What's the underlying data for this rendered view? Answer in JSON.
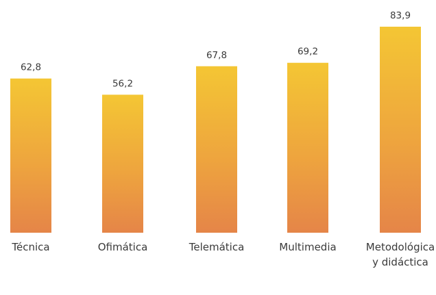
{
  "chart_data": {
    "type": "bar",
    "categories": [
      [
        "Técnica"
      ],
      [
        "Ofimática"
      ],
      [
        "Telemática"
      ],
      [
        "Multimedia"
      ],
      [
        "Metodológica",
        "y didáctica"
      ]
    ],
    "values": [
      62.8,
      56.2,
      67.8,
      69.2,
      83.9
    ],
    "value_labels": [
      "62,8",
      "56,2",
      "67,8",
      "69,2",
      "83,9"
    ],
    "title": "",
    "xlabel": "",
    "ylabel": "",
    "ylim": [
      0,
      83.9
    ],
    "grid": false,
    "legend": "none",
    "colors": {
      "bar_top": "#f4c634",
      "bar_mid": "#eea53e",
      "bar_bottom": "#e58548",
      "text": "#3a3a3a"
    }
  }
}
